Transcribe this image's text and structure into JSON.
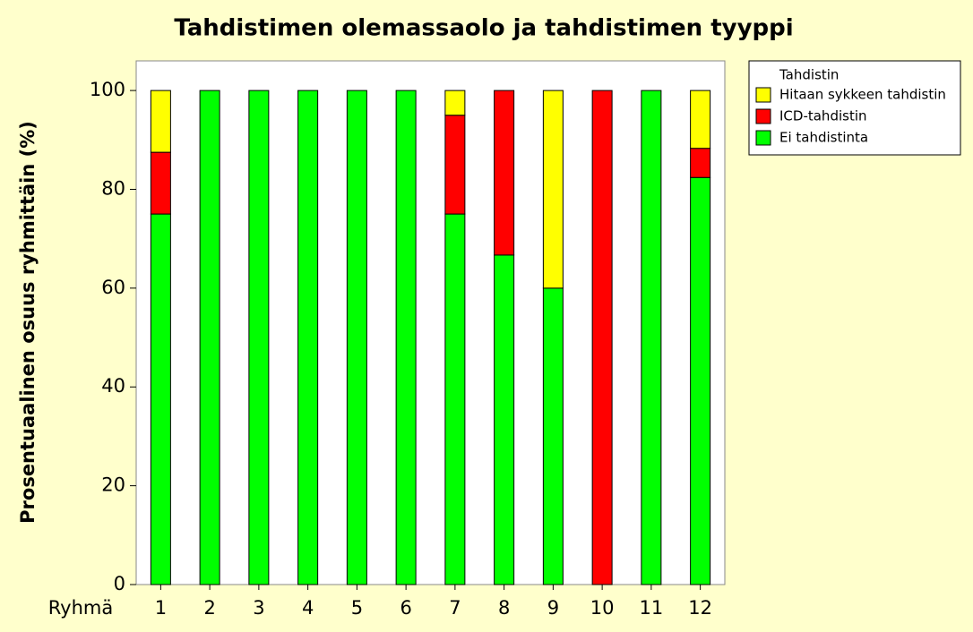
{
  "chart_data": {
    "type": "stacked-bar",
    "title": "Tahdistimen olemassaolo ja tahdistimen tyyppi",
    "y_label": "Prosentuaalinen osuus ryhmittäin (%)",
    "x_label": "Ryhmä",
    "categories": [
      "1",
      "2",
      "3",
      "4",
      "5",
      "6",
      "7",
      "8",
      "9",
      "10",
      "11",
      "12"
    ],
    "series": [
      {
        "name": "Ei tahdistinta",
        "color": "#00ff00",
        "values": [
          75,
          100,
          100,
          100,
          100,
          100,
          75,
          66.7,
          60,
          0,
          100,
          82.4
        ]
      },
      {
        "name": "ICD-tahdistin",
        "color": "#ff0000",
        "values": [
          12.5,
          0,
          0,
          0,
          0,
          0,
          20,
          33.3,
          0,
          100,
          0,
          5.9
        ]
      },
      {
        "name": "Hitaan sykkeen tahdistin",
        "color": "#ffff00",
        "values": [
          12.5,
          0,
          0,
          0,
          0,
          0,
          5,
          0,
          40,
          0,
          0,
          11.7
        ]
      }
    ],
    "legend_title": "Tahdistin",
    "ylim": [
      0,
      106
    ],
    "yticks": [
      0,
      20,
      40,
      60,
      80,
      100
    ]
  }
}
